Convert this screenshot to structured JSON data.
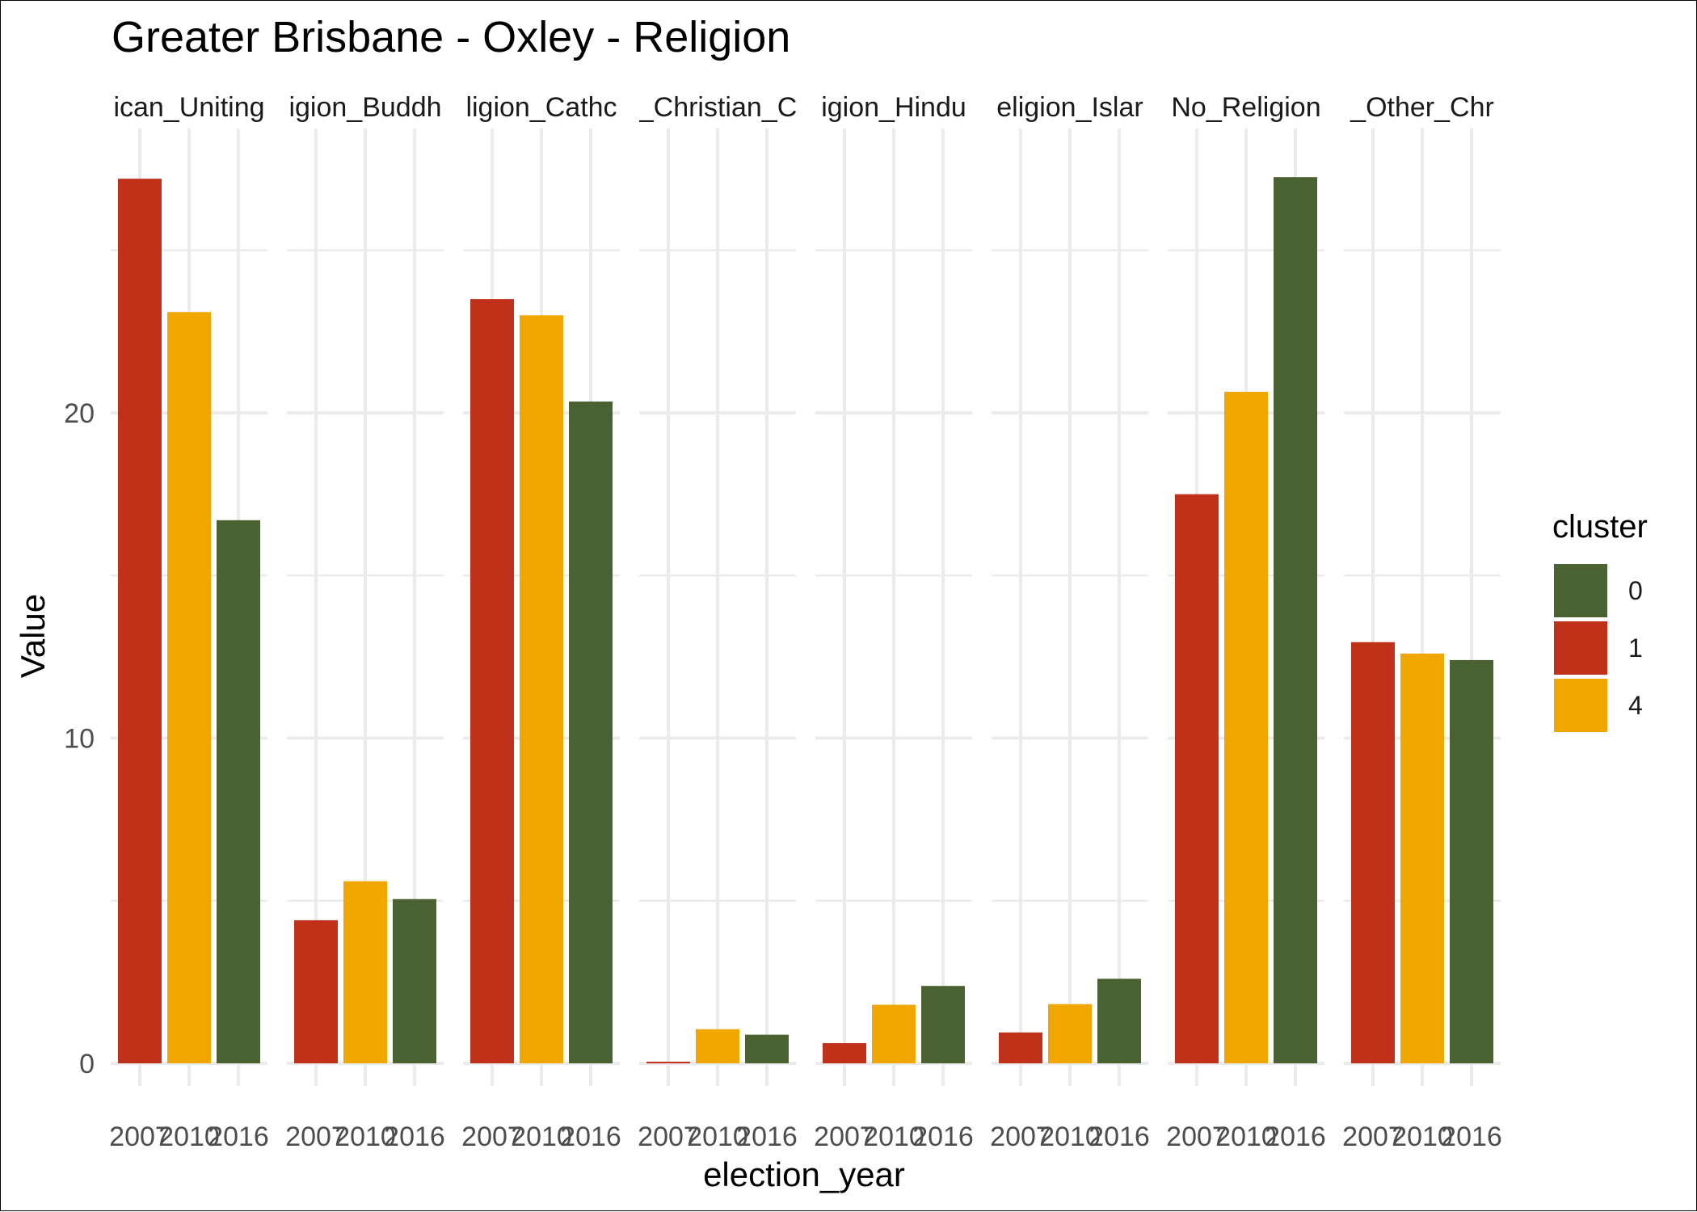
{
  "chart_data": {
    "type": "bar",
    "title": "Greater Brisbane - Oxley - Religion",
    "xlabel": "election_year",
    "ylabel": "Value",
    "ylim": [
      0,
      28.5
    ],
    "yticks": [
      0,
      10,
      20
    ],
    "grid": true,
    "legend_position": "right",
    "legend": {
      "title": "cluster",
      "entries": [
        {
          "label": "0",
          "color": "#4a6131"
        },
        {
          "label": "1",
          "color": "#c0311a"
        },
        {
          "label": "4",
          "color": "#f0a800"
        }
      ]
    },
    "x_tick_labels": [
      "2007",
      "2010",
      "2016"
    ],
    "facets": [
      {
        "strip": "ican_Uniting",
        "bars": [
          {
            "year": "2007",
            "cluster": "1",
            "value": 27.2
          },
          {
            "year": "2010",
            "cluster": "4",
            "value": 23.1
          },
          {
            "year": "2016",
            "cluster": "0",
            "value": 16.7
          }
        ]
      },
      {
        "strip": "igion_Buddh",
        "bars": [
          {
            "year": "2007",
            "cluster": "1",
            "value": 4.4
          },
          {
            "year": "2010",
            "cluster": "4",
            "value": 5.6
          },
          {
            "year": "2016",
            "cluster": "0",
            "value": 5.05
          }
        ]
      },
      {
        "strip": "ligion_Cathc",
        "bars": [
          {
            "year": "2007",
            "cluster": "1",
            "value": 23.5
          },
          {
            "year": "2010",
            "cluster": "4",
            "value": 23.0
          },
          {
            "year": "2016",
            "cluster": "0",
            "value": 20.35
          }
        ]
      },
      {
        "strip": "_Christian_C",
        "bars": [
          {
            "year": "2007",
            "cluster": "1",
            "value": 0.05
          },
          {
            "year": "2010",
            "cluster": "4",
            "value": 1.05
          },
          {
            "year": "2016",
            "cluster": "0",
            "value": 0.88
          }
        ]
      },
      {
        "strip": "igion_Hindu",
        "bars": [
          {
            "year": "2007",
            "cluster": "1",
            "value": 0.62
          },
          {
            "year": "2010",
            "cluster": "4",
            "value": 1.8
          },
          {
            "year": "2016",
            "cluster": "0",
            "value": 2.38
          }
        ]
      },
      {
        "strip": "eligion_Islar",
        "bars": [
          {
            "year": "2007",
            "cluster": "1",
            "value": 0.95
          },
          {
            "year": "2010",
            "cluster": "4",
            "value": 1.82
          },
          {
            "year": "2016",
            "cluster": "0",
            "value": 2.6
          }
        ]
      },
      {
        "strip": "No_Religion",
        "bars": [
          {
            "year": "2007",
            "cluster": "1",
            "value": 17.5
          },
          {
            "year": "2010",
            "cluster": "4",
            "value": 20.65
          },
          {
            "year": "2016",
            "cluster": "0",
            "value": 27.25
          }
        ]
      },
      {
        "strip": "_Other_Chr",
        "bars": [
          {
            "year": "2007",
            "cluster": "1",
            "value": 12.95
          },
          {
            "year": "2010",
            "cluster": "4",
            "value": 12.6
          },
          {
            "year": "2016",
            "cluster": "0",
            "value": 12.4
          }
        ]
      }
    ]
  }
}
